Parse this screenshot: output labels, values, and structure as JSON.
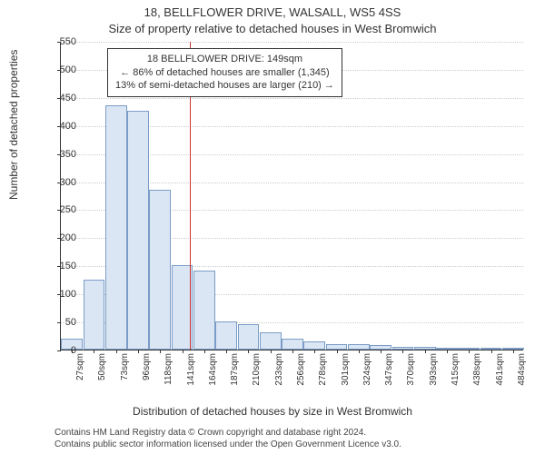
{
  "chart": {
    "type": "histogram",
    "title_main": "18, BELLFLOWER DRIVE, WALSALL, WS5 4SS",
    "title_sub": "Size of property relative to detached houses in West Bromwich",
    "title_fontsize": 13,
    "ylabel": "Number of detached properties",
    "xlabel": "Distribution of detached houses by size in West Bromwich",
    "label_fontsize": 12,
    "background_color": "#ffffff",
    "bar_fill": "#dbe6f4",
    "bar_border": "#7a9cc6",
    "grid_color": "#cccccc",
    "axis_color": "#333333",
    "ref_line_color": "#cc3333",
    "ref_line_value": 149,
    "ylim": [
      0,
      550
    ],
    "ytick_step": 50,
    "yticks": [
      0,
      50,
      100,
      150,
      200,
      250,
      300,
      350,
      400,
      450,
      500,
      550
    ],
    "xticks": [
      "27sqm",
      "50sqm",
      "73sqm",
      "96sqm",
      "118sqm",
      "141sqm",
      "164sqm",
      "187sqm",
      "210sqm",
      "233sqm",
      "256sqm",
      "278sqm",
      "301sqm",
      "324sqm",
      "347sqm",
      "370sqm",
      "393sqm",
      "415sqm",
      "438sqm",
      "461sqm",
      "484sqm"
    ],
    "bars": [
      20,
      125,
      435,
      425,
      285,
      150,
      140,
      50,
      45,
      30,
      20,
      15,
      10,
      10,
      8,
      5,
      5,
      3,
      3,
      3,
      2
    ],
    "info_box": {
      "line1": "18 BELLFLOWER DRIVE: 149sqm",
      "line2": "← 86% of detached houses are smaller (1,345)",
      "line3": "13% of semi-detached houses are larger (210) →",
      "left_pct": 10,
      "top_pct": 2
    },
    "attribution": {
      "line1": "Contains HM Land Registry data © Crown copyright and database right 2024.",
      "line2": "Contains public sector information licensed under the Open Government Licence v3.0.",
      "fontsize": 10
    }
  }
}
